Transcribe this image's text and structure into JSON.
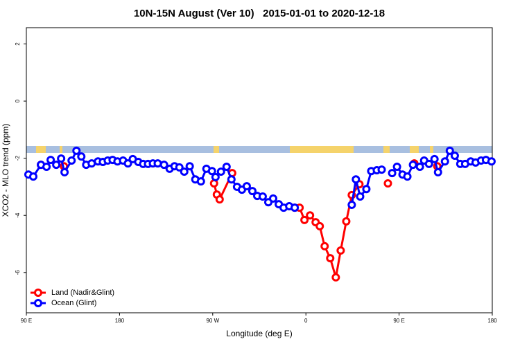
{
  "chart_data": {
    "type": "line",
    "title": "10N-15N August (Ver 10)   2015-01-01 to 2020-12-18",
    "x_label": "Longitude (deg E)",
    "y_label": "XCO2 - MLO trend (ppm)",
    "xlim": [
      90,
      540
    ],
    "ylim": [
      -7.41,
      2.57
    ],
    "xticks": [
      {
        "value": 90,
        "label": "90 E"
      },
      180,
      {
        "value": 270,
        "label": "90 W"
      },
      {
        "value": 360,
        "label": "0"
      },
      {
        "value": 450,
        "label": "90 E"
      },
      {
        "value": 540,
        "label": "180"
      }
    ],
    "yticks": [
      -6,
      -4,
      -2,
      0,
      2
    ],
    "legend": "bottomleft",
    "series": [
      {
        "name": "Land (Nadir&Glint)",
        "color": "#ff0000",
        "x": [
          104.1,
          null,
          126.3,
          null,
          271.3,
          274.0,
          276.7,
          288.8,
          null,
          349.2,
          353.9,
          358.6,
          364.0,
          369.4,
          373.4,
          378.1,
          383.5,
          388.9,
          393.6,
          399.0,
          404.3,
          411.7,
          null,
          439.2,
          null,
          464.7,
          null,
          486.9
        ],
        "values": [
          -2.23,
          null,
          -2.28,
          null,
          -2.88,
          -3.27,
          -3.44,
          -2.52,
          null,
          -3.73,
          -3.73,
          -4.16,
          -4.0,
          -4.24,
          -4.38,
          -5.08,
          -5.5,
          -6.17,
          -5.23,
          -4.21,
          -3.29,
          -2.91,
          null,
          -2.88,
          null,
          -2.18,
          null,
          -2.28
        ]
      },
      {
        "name": "Ocean (Glint)",
        "color": "#0000ff",
        "x": [
          92.0,
          96.7,
          104.1,
          109.5,
          113.5,
          118.9,
          123.6,
          126.9,
          133.7,
          138.4,
          143.1,
          147.8,
          153.1,
          159.2,
          163.9,
          168.6,
          173.3,
          178.0,
          183.4,
          188.1,
          192.8,
          198.1,
          202.8,
          207.5,
          212.2,
          216.9,
          223.0,
          228.4,
          233.1,
          237.8,
          242.5,
          247.8,
          253.2,
          258.6,
          263.9,
          269.3,
          272.7,
          278.0,
          283.4,
          288.1,
          293.5,
          298.2,
          302.9,
          308.3,
          313.0,
          318.3,
          323.7,
          328.4,
          333.8,
          338.5,
          343.9,
          349.2,
          null,
          404.3,
          408.3,
          412.4,
          418.4,
          423.1,
          428.5,
          433.2,
          null,
          443.3,
          448.0,
          453.3,
          458.0,
          463.4,
          470.1,
          474.2,
          478.9,
          484.2,
          487.6,
          494.3,
          499.0,
          503.8,
          509.1,
          513.8,
          519.2,
          523.9,
          529.2,
          533.9,
          539.3
        ],
        "values": [
          -2.57,
          -2.64,
          -2.23,
          -2.3,
          -2.06,
          -2.23,
          -2.01,
          -2.49,
          -2.08,
          -1.74,
          -1.94,
          -2.23,
          -2.18,
          -2.11,
          -2.13,
          -2.08,
          -2.06,
          -2.11,
          -2.08,
          -2.18,
          -2.03,
          -2.13,
          -2.2,
          -2.2,
          -2.18,
          -2.18,
          -2.23,
          -2.37,
          -2.28,
          -2.32,
          -2.47,
          -2.28,
          -2.74,
          -2.81,
          -2.37,
          -2.45,
          -2.66,
          -2.47,
          -2.3,
          -2.74,
          -3.0,
          -3.1,
          -2.98,
          -3.15,
          -3.32,
          -3.34,
          -3.54,
          -3.41,
          -3.61,
          -3.73,
          -3.68,
          -3.73,
          null,
          -3.63,
          -2.74,
          -3.34,
          -3.08,
          -2.45,
          -2.42,
          -2.4,
          null,
          -2.52,
          -2.3,
          -2.57,
          -2.64,
          -2.23,
          -2.3,
          -2.08,
          -2.2,
          -2.03,
          -2.49,
          -2.11,
          -1.74,
          -1.91,
          -2.2,
          -2.2,
          -2.11,
          -2.15,
          -2.08,
          -2.06,
          -2.11
        ]
      }
    ]
  }
}
